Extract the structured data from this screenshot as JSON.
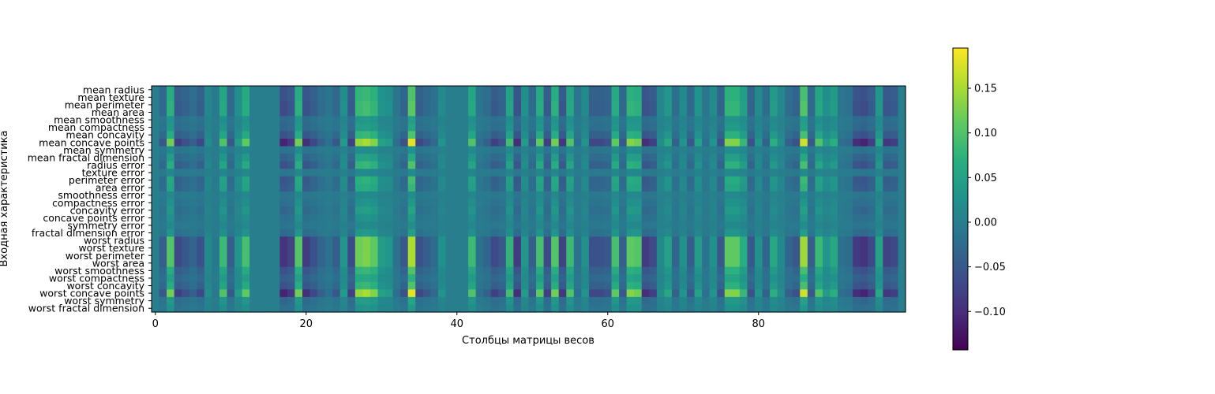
{
  "chart_data": {
    "type": "heatmap",
    "title": "",
    "xlabel": "Столбцы матрицы весов",
    "ylabel": "Входная характеристика",
    "xlim": [
      -0.5,
      99.5
    ],
    "x_ticks": [
      0,
      20,
      40,
      60,
      80
    ],
    "n_columns": 100,
    "rows": [
      "mean radius",
      "mean texture",
      "mean perimeter",
      "mean area",
      "mean smoothness",
      "mean compactness",
      "mean concavity",
      "mean concave points",
      "mean symmetry",
      "mean fractal dimension",
      "radius error",
      "texture error",
      "perimeter error",
      "area error",
      "smoothness error",
      "compactness error",
      "concavity error",
      "concave points error",
      "symmetry error",
      "fractal dimension error",
      "worst radius",
      "worst texture",
      "worst perimeter",
      "worst area",
      "worst smoothness",
      "worst compactness",
      "worst concavity",
      "worst concave points",
      "worst symmetry",
      "worst fractal dimension"
    ],
    "row_scale": [
      0.55,
      0.55,
      0.6,
      0.6,
      0.25,
      0.3,
      0.55,
      1.0,
      0.15,
      0.35,
      0.55,
      0.1,
      0.5,
      0.45,
      0.12,
      0.2,
      0.3,
      0.2,
      0.12,
      0.25,
      0.85,
      0.85,
      0.85,
      0.85,
      0.55,
      0.4,
      0.55,
      1.0,
      0.3,
      0.2
    ],
    "column_amplitude": [
      0.0,
      -0.05,
      0.12,
      -0.08,
      -0.06,
      -0.04,
      -0.07,
      0.02,
      -0.01,
      0.1,
      -0.05,
      0.04,
      0.11,
      0.0,
      0.0,
      0.0,
      0.0,
      -0.11,
      -0.09,
      0.12,
      -0.1,
      -0.07,
      -0.04,
      -0.02,
      -0.05,
      0.04,
      -0.08,
      0.14,
      0.15,
      0.13,
      0.05,
      0.04,
      -0.02,
      -0.06,
      0.18,
      -0.07,
      -0.05,
      -0.03,
      0.03,
      0.0,
      0.0,
      0.0,
      0.1,
      -0.02,
      -0.04,
      -0.08,
      -0.06,
      0.09,
      -0.1,
      0.04,
      -0.05,
      0.11,
      -0.08,
      0.12,
      -0.09,
      0.1,
      -0.02,
      0.03,
      -0.07,
      -0.07,
      -0.06,
      0.11,
      -0.05,
      0.13,
      0.12,
      -0.1,
      -0.08,
      0.02,
      0.06,
      -0.04,
      0.03,
      -0.05,
      0.05,
      -0.02,
      0.03,
      -0.06,
      0.13,
      0.13,
      0.08,
      -0.06,
      0.03,
      -0.04,
      0.07,
      0.02,
      -0.04,
      -0.06,
      0.17,
      -0.05,
      0.1,
      0.04,
      0.07,
      -0.02,
      -0.03,
      -0.1,
      -0.11,
      -0.08,
      0.06,
      -0.09,
      -0.08,
      0.0
    ],
    "colormap": "viridis",
    "colorbar": {
      "range": [
        -0.143,
        0.195
      ],
      "ticks": [
        -0.1,
        -0.05,
        0.0,
        0.05,
        0.1,
        0.15
      ],
      "tick_labels": [
        "−0.10",
        "−0.05",
        "0.00",
        "0.05",
        "0.10",
        "0.15"
      ]
    },
    "grid": false,
    "legend": "none"
  }
}
